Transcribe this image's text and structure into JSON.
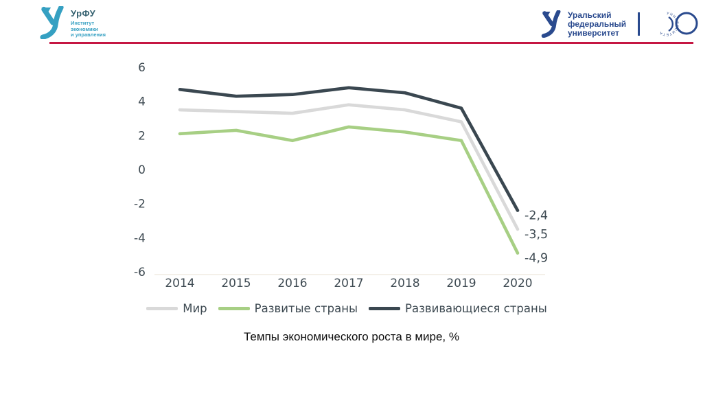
{
  "header": {
    "left_logo": {
      "acronym": "УрФУ",
      "subtitle_lines": [
        "Институт",
        "экономики",
        "и управления"
      ],
      "color": "#35a0c2"
    },
    "right_logo": {
      "lines": [
        "Уральский",
        "федеральный",
        "университет"
      ],
      "color": "#2a4a8e",
      "emblem_ring_text": "УНИВЕРСИТЕТА"
    },
    "rule_color": "#c51743"
  },
  "chart_data": {
    "type": "line",
    "title": "Темпы экономического роста в мире, %",
    "x": [
      "2014",
      "2015",
      "2016",
      "2017",
      "2018",
      "2019",
      "2020"
    ],
    "series": [
      {
        "name": "Мир",
        "color": "#d9d9d9",
        "values": [
          3.5,
          3.4,
          3.3,
          3.8,
          3.5,
          2.8,
          -3.5
        ],
        "end_label": "-3,5"
      },
      {
        "name": "Развитые страны",
        "color": "#a7cf84",
        "values": [
          2.1,
          2.3,
          1.7,
          2.5,
          2.2,
          1.7,
          -4.9
        ],
        "end_label": "-4,9"
      },
      {
        "name": "Развивающиеся страны",
        "color": "#3a4750",
        "values": [
          4.7,
          4.3,
          4.4,
          4.8,
          4.5,
          3.6,
          -2.4
        ],
        "end_label": "-2,4"
      }
    ],
    "ylim": [
      -6,
      6
    ],
    "ytick_step": 2,
    "grid": false,
    "legend_position": "bottom",
    "axis_text_color": "#3e4a52"
  },
  "caption": "Темпы экономического роста в мире, %"
}
